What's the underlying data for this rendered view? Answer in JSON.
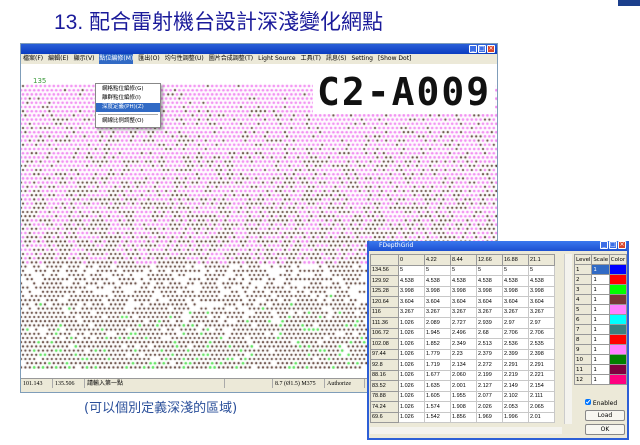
{
  "slide": {
    "title": "13. 配合雷射機台設計深淺變化網點",
    "caption": "(可以個別定義深淺的區域)"
  },
  "window": {
    "menu": [
      "檔案(F)",
      "編輯(E)",
      "顯示(V)",
      "點位編修(M)",
      "匯出(O)",
      "均勻性調整(U)",
      "圖片合成調整(T)",
      "Light Source",
      "工具(T)",
      "訊息(S)",
      "Setting",
      "[Show Dot]"
    ],
    "active_menu_index": 3,
    "dropdown": [
      "網格點位編修(G)",
      "離群點位編修(I)",
      "深度定義(PH)(Z)",
      "網線比例調整(O)"
    ],
    "dropdown_selected": 2,
    "axis_label": "135",
    "stamp": "C2-A009",
    "status": [
      "101.143",
      "135.506",
      "請輸入第一點",
      "",
      "8.7 (Ø1.5) M375",
      "Authorize"
    ],
    "dot_colors": {
      "pink": "#f080f0",
      "brown": "#4a2a20",
      "green": "#50e050"
    }
  },
  "dialog": {
    "title": "FDepthGrid",
    "col_headers": [
      "0",
      "4.22",
      "8.44",
      "12.66",
      "16.88",
      "21.1"
    ],
    "rows": [
      {
        "y": "134.56",
        "v": [
          "5",
          "5",
          "5",
          "5",
          "5",
          "5"
        ]
      },
      {
        "y": "129.92",
        "v": [
          "4.538",
          "4.538",
          "4.538",
          "4.538",
          "4.538",
          "4.538"
        ]
      },
      {
        "y": "125.28",
        "v": [
          "3.998",
          "3.998",
          "3.998",
          "3.998",
          "3.998",
          "3.998"
        ]
      },
      {
        "y": "120.64",
        "v": [
          "3.604",
          "3.604",
          "3.604",
          "3.604",
          "3.604",
          "3.604"
        ]
      },
      {
        "y": "116",
        "v": [
          "3.267",
          "3.267",
          "3.267",
          "3.267",
          "3.267",
          "3.267"
        ]
      },
      {
        "y": "111.36",
        "v": [
          "1.026",
          "2.089",
          "2.727",
          "2.939",
          "2.97",
          "2.97"
        ]
      },
      {
        "y": "106.72",
        "v": [
          "1.026",
          "1.945",
          "2.496",
          "2.68",
          "2.706",
          "2.706"
        ]
      },
      {
        "y": "102.08",
        "v": [
          "1.026",
          "1.852",
          "2.349",
          "2.513",
          "2.536",
          "2.535"
        ]
      },
      {
        "y": "97.44",
        "v": [
          "1.026",
          "1.779",
          "2.23",
          "2.379",
          "2.399",
          "2.398"
        ]
      },
      {
        "y": "92.8",
        "v": [
          "1.026",
          "1.719",
          "2.134",
          "2.272",
          "2.291",
          "2.291"
        ]
      },
      {
        "y": "88.16",
        "v": [
          "1.026",
          "1.677",
          "2.060",
          "2.199",
          "2.219",
          "2.221"
        ]
      },
      {
        "y": "83.52",
        "v": [
          "1.026",
          "1.635",
          "2.001",
          "2.127",
          "2.149",
          "2.154"
        ]
      },
      {
        "y": "78.88",
        "v": [
          "1.026",
          "1.605",
          "1.955",
          "2.077",
          "2.102",
          "2.111"
        ]
      },
      {
        "y": "74.24",
        "v": [
          "1.026",
          "1.574",
          "1.908",
          "2.026",
          "2.053",
          "2.065"
        ]
      },
      {
        "y": "69.6",
        "v": [
          "1.026",
          "1.542",
          "1.856",
          "1.969",
          "1.996",
          "2.01"
        ]
      }
    ],
    "level_headers": [
      "Level",
      "Scale",
      "Color"
    ],
    "levels": [
      {
        "level": "1",
        "scale": "1",
        "color": "#0000ff"
      },
      {
        "level": "2",
        "scale": "1",
        "color": "#ff0000"
      },
      {
        "level": "3",
        "scale": "1",
        "color": "#00ff00"
      },
      {
        "level": "4",
        "scale": "1",
        "color": "#7a3838"
      },
      {
        "level": "5",
        "scale": "1",
        "color": "#ff80ff"
      },
      {
        "level": "6",
        "scale": "1",
        "color": "#00ffff"
      },
      {
        "level": "7",
        "scale": "1",
        "color": "#3a8080"
      },
      {
        "level": "8",
        "scale": "1",
        "color": "#ff0000"
      },
      {
        "level": "9",
        "scale": "1",
        "color": "#ff80ff"
      },
      {
        "level": "10",
        "scale": "1",
        "color": "#008000"
      },
      {
        "level": "11",
        "scale": "1",
        "color": "#800040"
      },
      {
        "level": "12",
        "scale": "1",
        "color": "#ff0080"
      }
    ],
    "enabled_label": "Enabled",
    "enabled": true,
    "load_label": "Load",
    "ok_label": "OK"
  }
}
